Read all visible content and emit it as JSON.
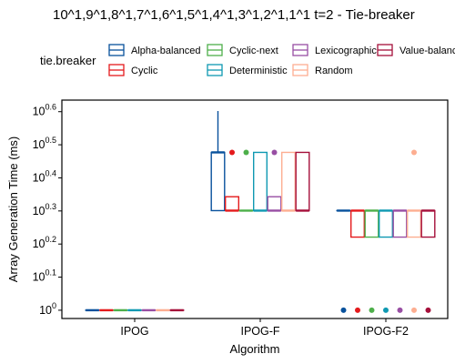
{
  "chart_data": {
    "type": "boxplot",
    "title": "10^1,9^1,8^1,7^1,6^1,5^1,4^1,3^1,2^1,1^1 t=2 - Tie-breaker",
    "xlabel": "Algorithm",
    "ylabel": "Array Generation Time (ms)",
    "y_scale": "log10",
    "ylim_exponent": [
      -0.025,
      0.635
    ],
    "y_ticks": [
      {
        "base": "10",
        "exp": "0"
      },
      {
        "base": "10",
        "exp": "0.1"
      },
      {
        "base": "10",
        "exp": "0.2"
      },
      {
        "base": "10",
        "exp": "0.3"
      },
      {
        "base": "10",
        "exp": "0.4"
      },
      {
        "base": "10",
        "exp": "0.5"
      },
      {
        "base": "10",
        "exp": "0.6"
      }
    ],
    "y_tick_exponents": [
      0,
      0.1,
      0.2,
      0.3,
      0.4,
      0.5,
      0.6
    ],
    "categories": [
      "IPOG",
      "IPOG-F",
      "IPOG-F2"
    ],
    "legend": {
      "title": "tie.breaker",
      "position": "top",
      "entries": [
        "Alpha-balanced",
        "Cyclic",
        "Cyclic-next",
        "Deterministic",
        "Lexicographic",
        "Random",
        "Value-balanced"
      ]
    },
    "series": [
      {
        "name": "Alpha-balanced",
        "color": "#08519c",
        "boxes": [
          {
            "q1": 0,
            "median": 0,
            "q3": 0,
            "whisker_low": 0,
            "whisker_high": 0,
            "outliers": []
          },
          {
            "q1": 0.301,
            "median": 0.477,
            "q3": 0.477,
            "whisker_low": 0.301,
            "whisker_high": 0.602,
            "outliers": []
          },
          {
            "q1": 0.301,
            "median": 0.301,
            "q3": 0.301,
            "whisker_low": 0.301,
            "whisker_high": 0.301,
            "outliers": [
              0
            ]
          }
        ]
      },
      {
        "name": "Cyclic",
        "color": "#e41a1c",
        "boxes": [
          {
            "q1": 0,
            "median": 0,
            "q3": 0,
            "whisker_low": 0,
            "whisker_high": 0,
            "outliers": []
          },
          {
            "q1": 0.301,
            "median": 0.301,
            "q3": 0.343,
            "whisker_low": 0.301,
            "whisker_high": 0.343,
            "outliers": [
              0.477
            ]
          },
          {
            "q1": 0.221,
            "median": 0.301,
            "q3": 0.301,
            "whisker_low": 0.221,
            "whisker_high": 0.301,
            "outliers": [
              0
            ]
          }
        ]
      },
      {
        "name": "Cyclic-next",
        "color": "#4daf4a",
        "boxes": [
          {
            "q1": 0,
            "median": 0,
            "q3": 0,
            "whisker_low": 0,
            "whisker_high": 0,
            "outliers": []
          },
          {
            "q1": 0.301,
            "median": 0.301,
            "q3": 0.301,
            "whisker_low": 0.301,
            "whisker_high": 0.301,
            "outliers": [
              0.477
            ]
          },
          {
            "q1": 0.221,
            "median": 0.301,
            "q3": 0.301,
            "whisker_low": 0.221,
            "whisker_high": 0.301,
            "outliers": [
              0
            ]
          }
        ]
      },
      {
        "name": "Deterministic",
        "color": "#0f99b2",
        "boxes": [
          {
            "q1": 0,
            "median": 0,
            "q3": 0,
            "whisker_low": 0,
            "whisker_high": 0,
            "outliers": []
          },
          {
            "q1": 0.301,
            "median": 0.301,
            "q3": 0.477,
            "whisker_low": 0.301,
            "whisker_high": 0.477,
            "outliers": []
          },
          {
            "q1": 0.221,
            "median": 0.301,
            "q3": 0.301,
            "whisker_low": 0.221,
            "whisker_high": 0.301,
            "outliers": [
              0
            ]
          }
        ]
      },
      {
        "name": "Lexicographic",
        "color": "#984ea3",
        "boxes": [
          {
            "q1": 0,
            "median": 0,
            "q3": 0,
            "whisker_low": 0,
            "whisker_high": 0,
            "outliers": []
          },
          {
            "q1": 0.301,
            "median": 0.301,
            "q3": 0.343,
            "whisker_low": 0.301,
            "whisker_high": 0.343,
            "outliers": [
              0.477
            ]
          },
          {
            "q1": 0.221,
            "median": 0.301,
            "q3": 0.301,
            "whisker_low": 0.221,
            "whisker_high": 0.301,
            "outliers": [
              0
            ]
          }
        ]
      },
      {
        "name": "Random",
        "color": "#fdae91",
        "boxes": [
          {
            "q1": 0,
            "median": 0,
            "q3": 0,
            "whisker_low": 0,
            "whisker_high": 0,
            "outliers": []
          },
          {
            "q1": 0.301,
            "median": 0.301,
            "q3": 0.477,
            "whisker_low": 0.301,
            "whisker_high": 0.477,
            "outliers": []
          },
          {
            "q1": 0.221,
            "median": 0.301,
            "q3": 0.301,
            "whisker_low": 0.221,
            "whisker_high": 0.301,
            "outliers": [
              0,
              0.477
            ]
          }
        ]
      },
      {
        "name": "Value-balanced",
        "color": "#a50f3a",
        "boxes": [
          {
            "q1": 0,
            "median": 0,
            "q3": 0,
            "whisker_low": 0,
            "whisker_high": 0,
            "outliers": []
          },
          {
            "q1": 0.301,
            "median": 0.301,
            "q3": 0.477,
            "whisker_low": 0.301,
            "whisker_high": 0.477,
            "outliers": []
          },
          {
            "q1": 0.221,
            "median": 0.301,
            "q3": 0.301,
            "whisker_low": 0.221,
            "whisker_high": 0.301,
            "outliers": [
              0
            ]
          }
        ]
      }
    ]
  }
}
